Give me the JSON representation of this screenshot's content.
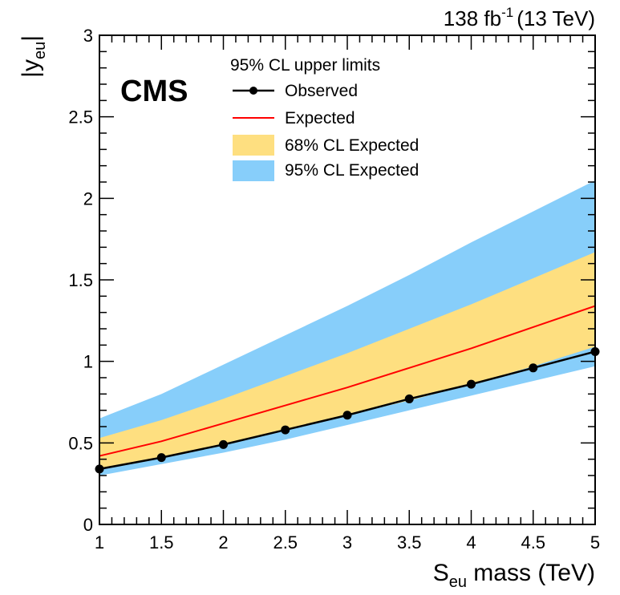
{
  "chart_data": {
    "type": "line",
    "experiment_label": "CMS",
    "lumi_label": {
      "value": "138 fb",
      "exponent": "-1",
      "energy": "(13 TeV)"
    },
    "xlabel": {
      "main": "S",
      "sub": "eu",
      "rest": " mass (TeV)"
    },
    "ylabel": {
      "main": "|y",
      "sub": "eu",
      "rest": "|"
    },
    "xlim": [
      1,
      5
    ],
    "ylim": [
      0,
      3
    ],
    "x_ticks": [
      1,
      1.5,
      2,
      2.5,
      3,
      3.5,
      4,
      4.5,
      5
    ],
    "x_tick_labels": [
      "1",
      "1.5",
      "2",
      "2.5",
      "3",
      "3.5",
      "4",
      "4.5",
      "5"
    ],
    "y_ticks": [
      0,
      0.5,
      1,
      1.5,
      2,
      2.5,
      3
    ],
    "y_tick_labels": [
      "0",
      "0.5",
      "1",
      "1.5",
      "2",
      "2.5",
      "3"
    ],
    "legend": {
      "header": "95% CL upper limits",
      "entries": [
        {
          "key": "observed",
          "label": "Observed"
        },
        {
          "key": "expected",
          "label": "Expected"
        },
        {
          "key": "band68",
          "label": "68% CL Expected"
        },
        {
          "key": "band95",
          "label": "95% CL Expected"
        }
      ]
    },
    "colors": {
      "observed": "#000000",
      "expected": "#ff0000",
      "band68": "#fedf80",
      "band95": "#87cefa"
    },
    "x": [
      1,
      1.5,
      2,
      2.5,
      3,
      3.5,
      4,
      4.5,
      5
    ],
    "series": [
      {
        "name": "Observed",
        "key": "observed",
        "values": [
          0.34,
          0.41,
          0.49,
          0.58,
          0.67,
          0.77,
          0.86,
          0.96,
          1.06
        ]
      },
      {
        "name": "Expected",
        "key": "expected",
        "values": [
          0.42,
          0.51,
          0.62,
          0.73,
          0.84,
          0.96,
          1.08,
          1.21,
          1.34
        ]
      }
    ],
    "bands": [
      {
        "name": "95% CL Expected",
        "key": "band95",
        "low": [
          0.3,
          0.37,
          0.44,
          0.52,
          0.61,
          0.7,
          0.79,
          0.88,
          0.97
        ],
        "high": [
          0.65,
          0.8,
          0.98,
          1.16,
          1.34,
          1.53,
          1.73,
          1.92,
          2.11
        ]
      },
      {
        "name": "68% CL Expected",
        "key": "band68",
        "low": [
          0.34,
          0.41,
          0.49,
          0.58,
          0.67,
          0.76,
          0.86,
          0.97,
          1.09
        ],
        "high": [
          0.53,
          0.64,
          0.77,
          0.91,
          1.05,
          1.2,
          1.35,
          1.51,
          1.67
        ]
      }
    ]
  }
}
